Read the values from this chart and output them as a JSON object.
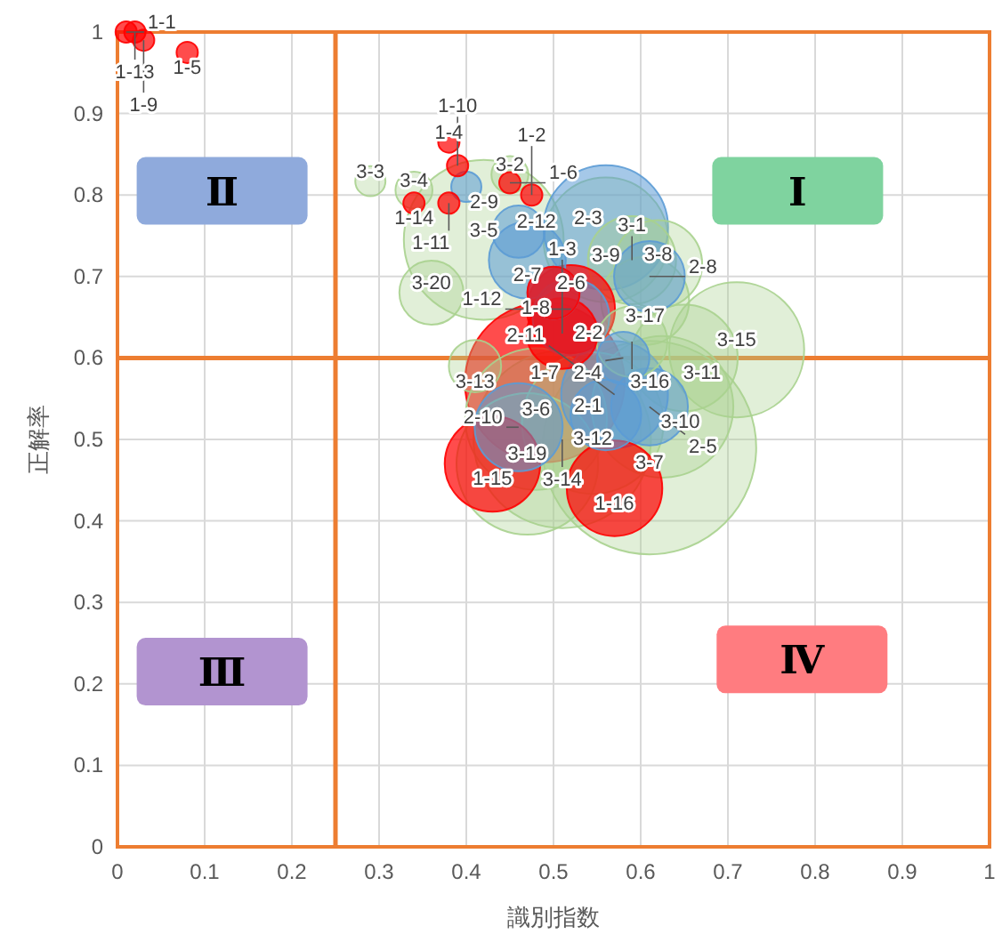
{
  "chart_data": {
    "type": "bubble",
    "xlabel": "識別指数",
    "ylabel": "正解率",
    "xlim": [
      0,
      1
    ],
    "ylim": [
      0,
      1
    ],
    "xticks": [
      0,
      0.1,
      0.2,
      0.3,
      0.4,
      0.5,
      0.6,
      0.7,
      0.8,
      0.9,
      1
    ],
    "yticks": [
      0,
      0.1,
      0.2,
      0.3,
      0.4,
      0.5,
      0.6,
      0.7,
      0.8,
      0.9,
      1
    ],
    "grid": true,
    "ref_lines": [
      {
        "axis": "x",
        "value": 0.25,
        "color": "#ed7d31"
      },
      {
        "axis": "y",
        "value": 0.6,
        "color": "#ed7d31"
      }
    ],
    "annotations": [
      "Ⅰ",
      "Ⅱ",
      "Ⅲ",
      "Ⅳ"
    ],
    "series": [
      {
        "color": "#a9d18e",
        "x": [
          0.29,
          0.34,
          0.45,
          0.42,
          0.56,
          0.59,
          0.62,
          0.605,
          0.36,
          0.59,
          0.65,
          0.71,
          0.41,
          0.48,
          0.545,
          0.51,
          0.625,
          0.61,
          0.47
        ],
        "values": [
          0.817,
          0.806,
          0.825,
          0.745,
          0.745,
          0.72,
          0.715,
          0.67,
          0.68,
          0.62,
          0.6,
          0.61,
          0.59,
          0.525,
          0.52,
          0.5,
          0.54,
          0.49,
          0.47
        ],
        "sizes": [
          0.02,
          0.03,
          0.03,
          0.56,
          0.34,
          0.17,
          0.17,
          0.17,
          0.09,
          0.11,
          0.25,
          0.4,
          0.06,
          0.44,
          0.44,
          0.69,
          0.44,
          1,
          0.44
        ],
        "value_labels": [
          "3-3",
          "3-4",
          "3-2",
          "3-5",
          "3-9",
          "3-1",
          "3-8",
          "3-17",
          "3-20",
          "3-16",
          "3-11",
          "3-15",
          "3-13",
          "3-6",
          "3-12",
          "3-14",
          "3-10",
          "3-7",
          "3-19"
        ]
      },
      {
        "color": "#5b9bd5",
        "x": [
          0.4,
          0.46,
          0.47,
          0.56,
          0.61,
          0.5,
          0.52,
          0.58,
          0.57,
          0.56,
          0.61,
          0.46
        ],
        "values": [
          0.81,
          0.755,
          0.72,
          0.76,
          0.7,
          0.68,
          0.65,
          0.6,
          0.555,
          0.53,
          0.54,
          0.515
        ],
        "sizes": [
          0.02,
          0.06,
          0.13,
          0.34,
          0.11,
          0.06,
          0.13,
          0.06,
          0.25,
          0.11,
          0.13,
          0.17
        ],
        "value_labels": [
          "2-9",
          "2-12",
          "2-7",
          "2-3",
          "2-8",
          "2-6",
          "2-2",
          "2-4",
          "2-11",
          "2-1",
          "2-5",
          "2-10"
        ]
      },
      {
        "color": "#ff0000",
        "x": [
          0.01,
          0.02,
          0.03,
          0.08,
          0.38,
          0.39,
          0.34,
          0.38,
          0.45,
          0.475,
          0.49,
          0.51,
          0.5,
          0.52,
          0.43,
          0.57
        ],
        "values": [
          1.0,
          1.0,
          0.99,
          0.975,
          0.865,
          0.836,
          0.79,
          0.79,
          0.815,
          0.8,
          0.57,
          0.63,
          0.68,
          0.66,
          0.47,
          0.44
        ],
        "sizes": [
          0.01,
          0.01,
          0.01,
          0.01,
          0.01,
          0.01,
          0.01,
          0.01,
          0.01,
          0.01,
          0.56,
          0.11,
          0.06,
          0.17,
          0.2,
          0.2
        ],
        "value_labels": [
          "1-1",
          "1-13",
          "1-9",
          "1-5",
          "1-4",
          "1-10",
          "1-14",
          "1-11",
          "1-6",
          "1-2",
          "1-7",
          "1-3",
          "1-8",
          "1-12",
          "1-15",
          "1-16"
        ]
      }
    ]
  }
}
